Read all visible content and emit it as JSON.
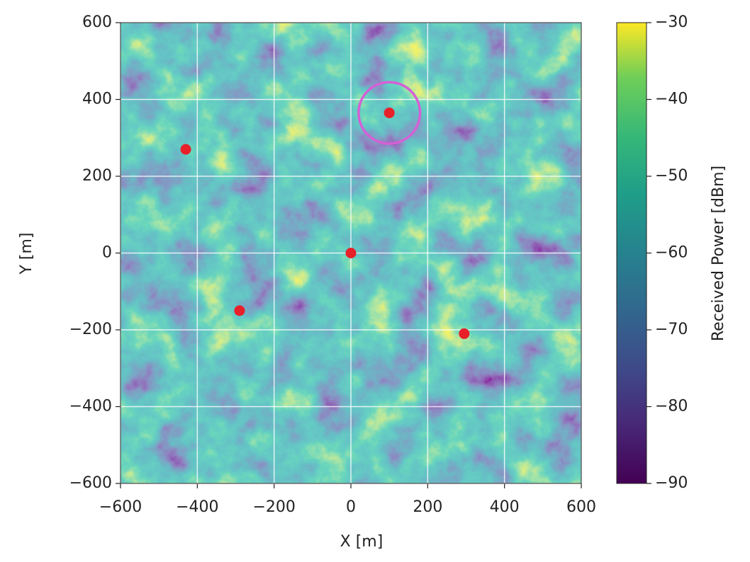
{
  "chart_data": {
    "type": "scatter",
    "x": [
      -430,
      100,
      0,
      -290,
      295
    ],
    "y": [
      270,
      365,
      0,
      -150,
      -210
    ],
    "color": "#e8202a",
    "xlabel": "X [m]",
    "ylabel": "Y [m]",
    "xlim": [
      -600,
      600
    ],
    "ylim": [
      -600,
      600
    ],
    "xticks": [
      {
        "value": -600,
        "label": "−600"
      },
      {
        "value": -400,
        "label": "−400"
      },
      {
        "value": -200,
        "label": "−200"
      },
      0,
      200,
      400,
      600
    ],
    "yticks": [
      {
        "value": -600,
        "label": "−600"
      },
      {
        "value": -400,
        "label": "−400"
      },
      {
        "value": -200,
        "label": "−200"
      },
      0,
      200,
      400,
      600
    ],
    "grid": true,
    "colorbar": {
      "label": "Received Power [dBm]",
      "lim": [
        -90,
        -30
      ],
      "ticks": [
        {
          "value": -30,
          "label": "−30"
        },
        {
          "value": -40,
          "label": "−40"
        },
        {
          "value": -50,
          "label": "−50"
        },
        {
          "value": -60,
          "label": "−60"
        },
        {
          "value": -70,
          "label": "−70"
        },
        {
          "value": -80,
          "label": "−80"
        },
        {
          "value": -90,
          "label": "−90"
        }
      ]
    },
    "highlight": {
      "x": 100,
      "y": 365,
      "radius": 80,
      "color": "#d65fd6"
    }
  }
}
